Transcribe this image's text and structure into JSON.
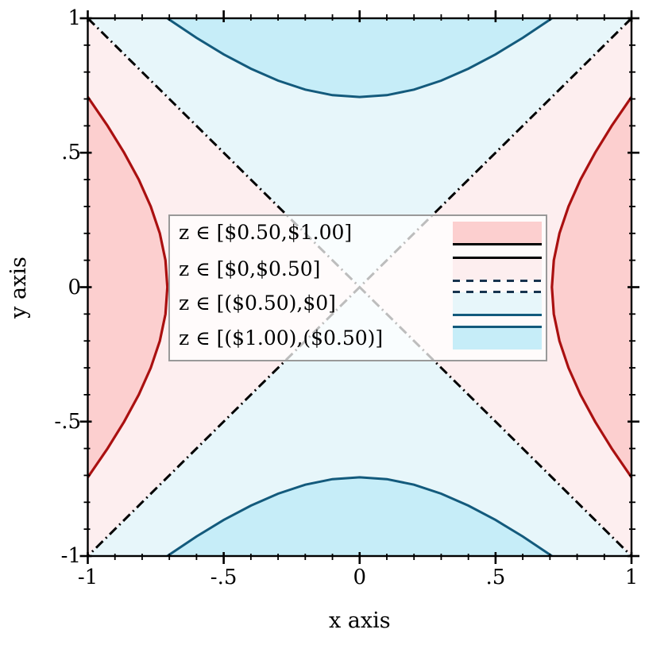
{
  "figure": {
    "x_axis_label": "x axis",
    "y_axis_label": "y axis",
    "x_ticks": [
      "-1",
      "-.5",
      "0",
      ".5",
      "1"
    ],
    "y_ticks": [
      "1",
      ".5",
      "0",
      "-.5",
      "-1"
    ],
    "legend": {
      "entries": [
        {
          "label": "z ∈ [$0.50,$1.00]"
        },
        {
          "label": "z ∈ [$0,$0.50]"
        },
        {
          "label": "z ∈ [($0.50),$0]"
        },
        {
          "label": "z ∈ [($1.00),($0.50)]"
        }
      ]
    },
    "colors": {
      "red_region": "#fccfcf",
      "pink_region": "#fdeeef",
      "lightblue_region": "#e7f6fa",
      "cyan_region": "#c6edf8",
      "red_line": "#aa1010",
      "blue_line": "#135a7c",
      "zero_line": "#000000",
      "legend_black": "#000000",
      "legend_navy": "#17344f",
      "legend_bg": "rgba(255,255,255,0.74)",
      "frame": "#000000"
    }
  },
  "chart_data": {
    "type": "heatmap",
    "subtype": "contour-intervals",
    "title": "",
    "xlabel": "x axis",
    "ylabel": "y axis",
    "xlim": [
      -1,
      1
    ],
    "ylim": [
      -1,
      1
    ],
    "x_major_ticks": [
      -1,
      -0.5,
      0,
      0.5,
      1
    ],
    "x_tick_labels": [
      "-1",
      "-.5",
      "0",
      ".5",
      "1"
    ],
    "y_major_ticks": [
      -1,
      -0.5,
      0,
      0.5,
      1
    ],
    "y_tick_labels": [
      "-1",
      "-.5",
      "0",
      ".5",
      "1"
    ],
    "minor_tick_step": 0.1,
    "grid": false,
    "legend_position": "center-left overlay, semi-transparent white",
    "z_levels": [
      -0.5,
      0,
      0.5
    ],
    "z_tick_format": "currency; negative values shown in parentheses",
    "intervals": [
      {
        "label": "z ∈ [$0.50,$1.00]",
        "z_min": 0.5,
        "z_max": 1.0,
        "fill": "#fccfcf",
        "region": "outside hyperbola branches x²−y²=0.5 at left and right edges"
      },
      {
        "label": "z ∈ [$0,$0.50]",
        "z_min": 0.0,
        "z_max": 0.5,
        "fill": "#fdeeef",
        "region": "left and right quadrants between diagonals y=±x"
      },
      {
        "label": "z ∈ [($0.50),$0]",
        "z_min": -0.5,
        "z_max": 0.0,
        "fill": "#e7f6fa",
        "region": "top and bottom quadrants between diagonals y=±x"
      },
      {
        "label": "z ∈ [($1.00),($0.50)]",
        "z_min": -1.0,
        "z_max": -0.5,
        "fill": "#c6edf8",
        "region": "beyond hyperbola branches y²−x²=0.5 at top and bottom edges"
      }
    ],
    "contour_lines": [
      {
        "level": 0.5,
        "level_label": "$0.50",
        "style": "solid",
        "color": "#aa1010",
        "shape": "hyperbola x²−y²=0.5, vertices (±0.707, 0), endpoints (±1, ±0.707)"
      },
      {
        "level": 0.0,
        "level_label": "$0",
        "style": "dash-dot",
        "color": "#000000",
        "shape": "diagonals y=x and y=−x corner to corner"
      },
      {
        "level": -0.5,
        "level_label": "($0.50)",
        "style": "solid",
        "color": "#135a7c",
        "shape": "hyperbola y²−x²=0.5, vertices (0, ±0.707), endpoints (±0.707, ±1)"
      }
    ]
  }
}
